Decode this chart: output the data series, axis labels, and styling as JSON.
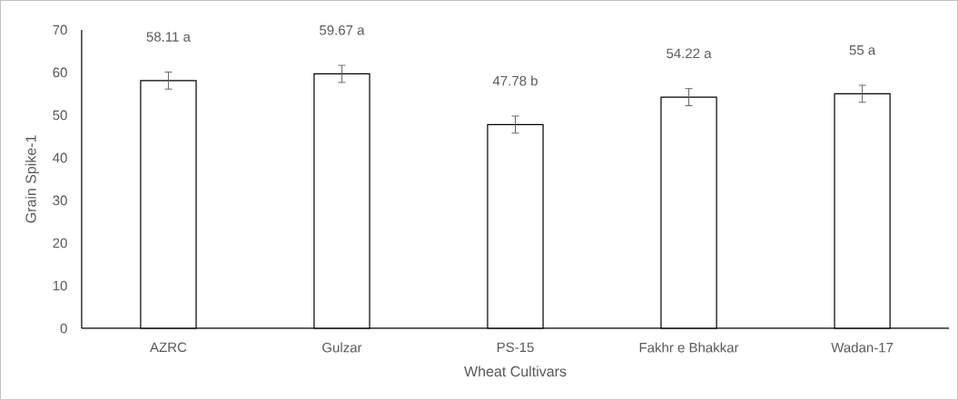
{
  "chart_data": {
    "type": "bar",
    "xlabel": "Wheat Cultivars",
    "ylabel": "Grain Spike-1",
    "categories": [
      "AZRC",
      "Gulzar",
      "PS-15",
      "Fakhr e Bhakkar",
      "Wadan-17"
    ],
    "values": [
      58.11,
      59.67,
      47.78,
      54.22,
      55
    ],
    "errors": [
      2,
      2,
      2,
      2,
      2
    ],
    "value_labels": [
      "58.11 a",
      "59.67 a",
      "47.78 b",
      "54.22 a",
      "55 a"
    ],
    "color": "#000000",
    "ylim": [
      0,
      70
    ],
    "yticks": [
      0,
      10,
      20,
      30,
      40,
      50,
      60,
      70
    ]
  }
}
